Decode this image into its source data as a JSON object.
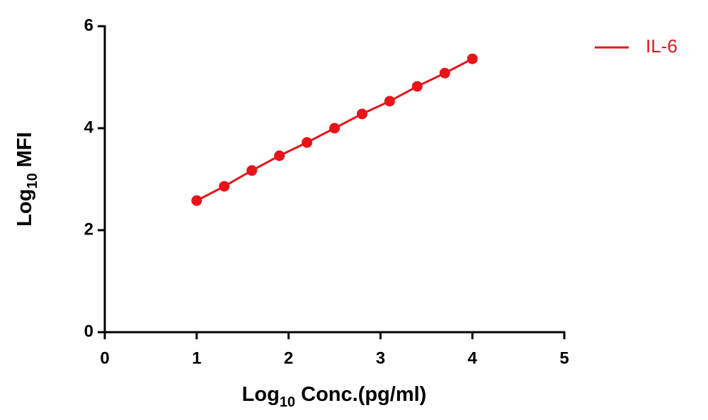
{
  "chart_data": {
    "type": "line",
    "x_label": [
      "Log",
      "10",
      " Conc.(pg/ml)"
    ],
    "y_label": [
      "Log",
      "10",
      "  MFI"
    ],
    "x": [
      1,
      1.3,
      1.6,
      1.9,
      2.2,
      2.5,
      2.8,
      3.1,
      3.4,
      3.7,
      4
    ],
    "series": [
      {
        "name": "IL-6",
        "color": "#e8141a",
        "values": [
          2.58,
          2.86,
          3.17,
          3.46,
          3.72,
          4.0,
          4.28,
          4.53,
          4.82,
          5.08,
          5.36
        ]
      }
    ],
    "xlim": [
      0,
      5
    ],
    "xticks": [
      0,
      1,
      2,
      3,
      4,
      5
    ],
    "ylim": [
      0,
      6
    ],
    "yticks": [
      0,
      2,
      4,
      6
    ],
    "grid": false,
    "legend": "top-right"
  }
}
